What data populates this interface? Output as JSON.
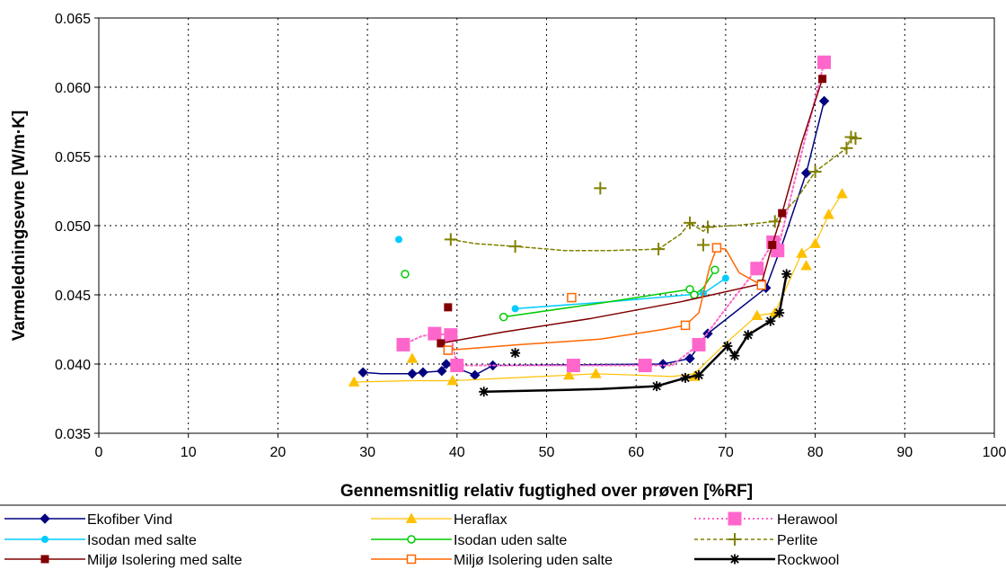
{
  "chart_data": {
    "type": "scatter",
    "xlabel": "Gennemsnitlig relativ fugtighed over prøven [%RF]",
    "ylabel": "Varmeledningsevne [W/m·K]",
    "xlim": [
      0,
      100
    ],
    "ylim": [
      0.035,
      0.065
    ],
    "xticks": [
      "0",
      "10",
      "20",
      "30",
      "40",
      "50",
      "60",
      "70",
      "80",
      "90",
      "100"
    ],
    "yticks": [
      "0.035",
      "0.040",
      "0.045",
      "0.050",
      "0.055",
      "0.060",
      "0.065"
    ],
    "grid": true,
    "legend_position": "bottom",
    "series": [
      {
        "name": "Ekofiber Vind",
        "color": "#000080",
        "marker": "diamond",
        "dash": "solid",
        "width": 1.5,
        "points": [
          [
            29.5,
            0.0394
          ],
          [
            35,
            0.0393
          ],
          [
            36.2,
            0.0394
          ],
          [
            38.3,
            0.0395
          ],
          [
            38.8,
            0.04
          ],
          [
            42,
            0.0392
          ],
          [
            44,
            0.0399
          ],
          [
            63,
            0.04
          ],
          [
            66,
            0.0404
          ],
          [
            68,
            0.0422
          ],
          [
            74.5,
            0.0455
          ],
          [
            79,
            0.0538
          ],
          [
            81,
            0.059
          ]
        ],
        "curve": [
          [
            29.5,
            0.0394
          ],
          [
            31.5,
            0.0393
          ],
          [
            35,
            0.0393
          ],
          [
            36.2,
            0.0394
          ],
          [
            38.3,
            0.0395
          ],
          [
            38.8,
            0.04
          ],
          [
            42,
            0.0392
          ],
          [
            44,
            0.0399
          ],
          [
            63,
            0.04
          ],
          [
            66,
            0.0404
          ],
          [
            68,
            0.0422
          ],
          [
            74.5,
            0.0455
          ],
          [
            76.5,
            0.049
          ],
          [
            79,
            0.0538
          ],
          [
            81,
            0.059
          ]
        ]
      },
      {
        "name": "Heraflax",
        "color": "#FFC000",
        "marker": "triangle",
        "dash": "solid",
        "width": 1.2,
        "points": [
          [
            28.5,
            0.0387
          ],
          [
            35,
            0.0404
          ],
          [
            39.5,
            0.0388
          ],
          [
            52.5,
            0.0392
          ],
          [
            55.5,
            0.0393
          ],
          [
            66.5,
            0.0391
          ],
          [
            73.5,
            0.0435
          ],
          [
            75.5,
            0.0437
          ],
          [
            78.5,
            0.048
          ],
          [
            79,
            0.0471
          ],
          [
            80,
            0.0487
          ],
          [
            81.5,
            0.0508
          ],
          [
            83,
            0.0523
          ]
        ],
        "curve": [
          [
            28.5,
            0.0387
          ],
          [
            35,
            0.0388
          ],
          [
            39.5,
            0.0388
          ],
          [
            46,
            0.039
          ],
          [
            52.5,
            0.0392
          ],
          [
            55.5,
            0.0393
          ],
          [
            60,
            0.0392
          ],
          [
            64,
            0.0391
          ],
          [
            66.5,
            0.0393
          ],
          [
            70,
            0.0415
          ],
          [
            73.5,
            0.0435
          ],
          [
            75.5,
            0.0437
          ],
          [
            78.5,
            0.048
          ],
          [
            80,
            0.0487
          ],
          [
            81.5,
            0.0508
          ],
          [
            83,
            0.0523
          ]
        ]
      },
      {
        "name": "Herawool",
        "color": "#FF66CC",
        "marker": "square-large",
        "dash": "dotted",
        "width": 2,
        "points": [
          [
            34,
            0.0414
          ],
          [
            37.5,
            0.0422
          ],
          [
            39.3,
            0.0421
          ],
          [
            40,
            0.0399
          ],
          [
            53,
            0.0399
          ],
          [
            61,
            0.0399
          ],
          [
            67,
            0.0414
          ],
          [
            73.5,
            0.0469
          ],
          [
            75.3,
            0.0488
          ],
          [
            75.8,
            0.0482
          ],
          [
            81,
            0.0618
          ]
        ],
        "curve": [
          [
            34,
            0.0414
          ],
          [
            36,
            0.042
          ],
          [
            37.5,
            0.0422
          ],
          [
            39.3,
            0.0421
          ],
          [
            40,
            0.0399
          ],
          [
            45,
            0.0399
          ],
          [
            53,
            0.0399
          ],
          [
            61,
            0.0399
          ],
          [
            64,
            0.0399
          ],
          [
            67,
            0.0414
          ],
          [
            70,
            0.044
          ],
          [
            73.5,
            0.0469
          ],
          [
            75.3,
            0.0488
          ],
          [
            75.8,
            0.0482
          ],
          [
            78,
            0.054
          ],
          [
            81,
            0.0618
          ]
        ]
      },
      {
        "name": "Isodan med salte",
        "color": "#00CCFF",
        "marker": "circle",
        "dash": "solid",
        "width": 1.5,
        "points": [
          [
            33.5,
            0.049
          ],
          [
            46.5,
            0.044
          ],
          [
            67.5,
            0.0451
          ],
          [
            70,
            0.0462
          ]
        ],
        "curve": [
          [
            46.5,
            0.044
          ],
          [
            57,
            0.0445
          ],
          [
            67.5,
            0.0451
          ],
          [
            70,
            0.0462
          ]
        ]
      },
      {
        "name": "Isodan uden salte",
        "color": "#00CC00",
        "marker": "circle-open",
        "dash": "solid",
        "width": 1.5,
        "points": [
          [
            34.2,
            0.0465
          ],
          [
            45.2,
            0.0434
          ],
          [
            66,
            0.0454
          ],
          [
            66.5,
            0.045
          ],
          [
            68.8,
            0.0468
          ]
        ],
        "curve": [
          [
            45.2,
            0.0434
          ],
          [
            56,
            0.0444
          ],
          [
            66,
            0.0454
          ],
          [
            66.5,
            0.045
          ],
          [
            67.5,
            0.0455
          ],
          [
            68.8,
            0.0468
          ]
        ]
      },
      {
        "name": "Perlite",
        "color": "#808000",
        "marker": "plus",
        "dash": "dashed",
        "width": 1.5,
        "points": [
          [
            39.3,
            0.049
          ],
          [
            46.5,
            0.0485
          ],
          [
            56,
            0.0527
          ],
          [
            62.5,
            0.0483
          ],
          [
            66,
            0.0502
          ],
          [
            67.5,
            0.0486
          ],
          [
            68,
            0.0499
          ],
          [
            75.5,
            0.0503
          ],
          [
            80,
            0.0539
          ],
          [
            83.5,
            0.0556
          ],
          [
            84,
            0.0564
          ],
          [
            84.5,
            0.0563
          ]
        ],
        "curve": [
          [
            39.3,
            0.049
          ],
          [
            42,
            0.0487
          ],
          [
            46.5,
            0.0485
          ],
          [
            52,
            0.0482
          ],
          [
            57,
            0.0482
          ],
          [
            62.5,
            0.0483
          ],
          [
            65,
            0.0494
          ],
          [
            66,
            0.0502
          ],
          [
            67.5,
            0.0496
          ],
          [
            68,
            0.0499
          ],
          [
            71,
            0.05
          ],
          [
            75.5,
            0.0503
          ],
          [
            78,
            0.052
          ],
          [
            80,
            0.0539
          ],
          [
            83.5,
            0.0556
          ],
          [
            84,
            0.0564
          ],
          [
            84.5,
            0.0563
          ]
        ]
      },
      {
        "name": "Miljø Isolering med salte",
        "color": "#800000",
        "marker": "square",
        "dash": "solid",
        "width": 1.5,
        "points": [
          [
            39,
            0.0441
          ],
          [
            38.2,
            0.0415
          ],
          [
            74,
            0.0458
          ],
          [
            75.2,
            0.0486
          ],
          [
            76.3,
            0.0509
          ],
          [
            80.8,
            0.0606
          ]
        ],
        "curve": [
          [
            38.2,
            0.0415
          ],
          [
            45,
            0.0423
          ],
          [
            55,
            0.0433
          ],
          [
            65,
            0.0445
          ],
          [
            74,
            0.0458
          ],
          [
            75.2,
            0.0486
          ],
          [
            76.3,
            0.0509
          ],
          [
            78.5,
            0.056
          ],
          [
            80.8,
            0.0606
          ]
        ]
      },
      {
        "name": "Miljø Isolering uden salte",
        "color": "#FF6600",
        "marker": "square-open",
        "dash": "solid",
        "width": 1.5,
        "points": [
          [
            39,
            0.041
          ],
          [
            52.8,
            0.0448
          ],
          [
            65.5,
            0.0428
          ],
          [
            69,
            0.0484
          ],
          [
            74,
            0.0457
          ]
        ],
        "curve": [
          [
            39,
            0.041
          ],
          [
            47,
            0.0414
          ],
          [
            56,
            0.0418
          ],
          [
            63,
            0.0425
          ],
          [
            65.5,
            0.0428
          ],
          [
            67,
            0.0437
          ],
          [
            68.2,
            0.047
          ],
          [
            69,
            0.0484
          ],
          [
            70,
            0.0483
          ],
          [
            71.5,
            0.0466
          ],
          [
            74,
            0.0457
          ]
        ]
      },
      {
        "name": "Rockwool",
        "color": "#000000",
        "marker": "asterisk",
        "dash": "solid",
        "width": 2.5,
        "points": [
          [
            43,
            0.038
          ],
          [
            46.5,
            0.0408
          ],
          [
            62.3,
            0.0384
          ],
          [
            65.5,
            0.039
          ],
          [
            67,
            0.0392
          ],
          [
            70.2,
            0.0413
          ],
          [
            71,
            0.0406
          ],
          [
            72.5,
            0.0421
          ],
          [
            75,
            0.0431
          ],
          [
            76,
            0.0437
          ],
          [
            76.8,
            0.0465
          ]
        ],
        "curve": [
          [
            43,
            0.038
          ],
          [
            50,
            0.0381
          ],
          [
            56,
            0.0382
          ],
          [
            62.3,
            0.0384
          ],
          [
            65.5,
            0.039
          ],
          [
            67,
            0.0392
          ],
          [
            70.2,
            0.0413
          ],
          [
            71,
            0.0406
          ],
          [
            72.5,
            0.0421
          ],
          [
            75,
            0.0431
          ],
          [
            76,
            0.0437
          ],
          [
            76.8,
            0.0465
          ]
        ]
      }
    ]
  }
}
